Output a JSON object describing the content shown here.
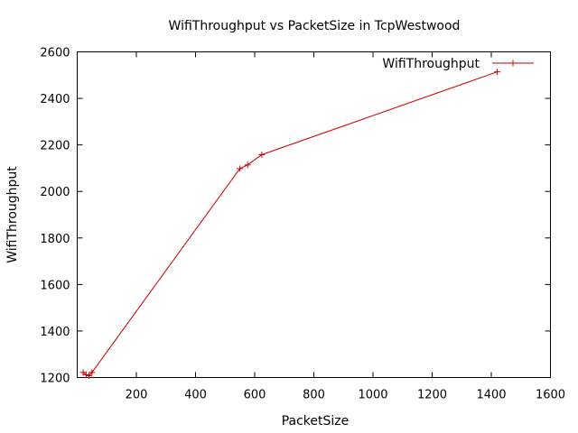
{
  "chart_data": {
    "type": "line",
    "title": "WifiThroughput vs PacketSize in TcpWestwood",
    "xlabel": "PacketSize",
    "ylabel": "WifiThroughput",
    "xlim": [
      0,
      1600
    ],
    "ylim": [
      1200,
      2600
    ],
    "xticks": [
      200,
      400,
      600,
      800,
      1000,
      1200,
      1400,
      1600
    ],
    "yticks": [
      1200,
      1400,
      1600,
      1800,
      2000,
      2200,
      2400,
      2600
    ],
    "grid": false,
    "legend_position": "top-right",
    "series": [
      {
        "name": "WifiThroughput",
        "color": "#cc0000",
        "marker": "plus",
        "x": [
          20,
          30,
          40,
          50,
          550,
          576,
          624,
          1420
        ],
        "y": [
          1222,
          1212,
          1208,
          1222,
          2098,
          2114,
          2158,
          2514
        ]
      }
    ]
  }
}
